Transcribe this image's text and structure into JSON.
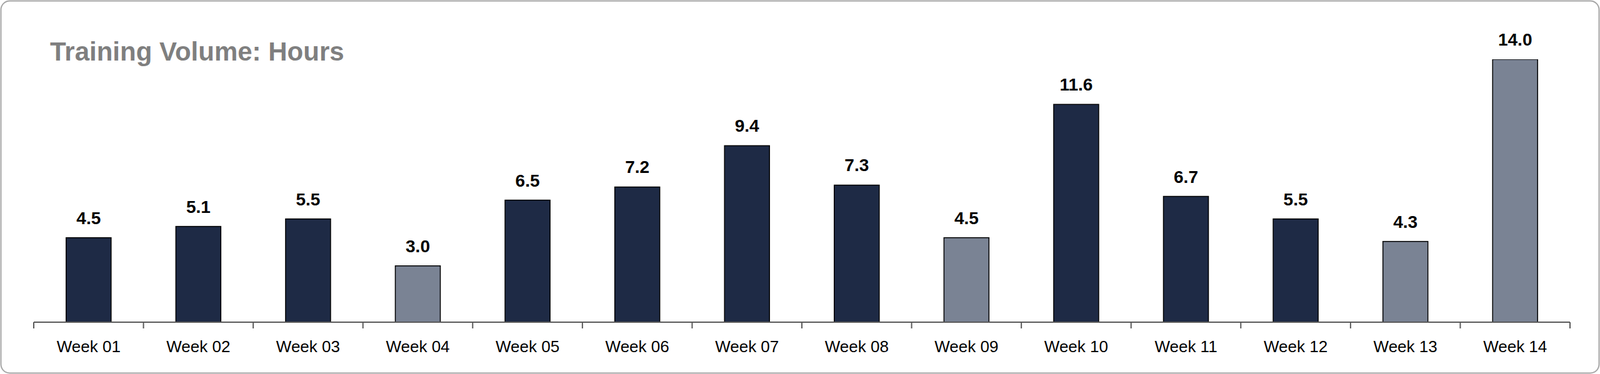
{
  "chart_data": {
    "type": "bar",
    "title": "Training Volume: Hours",
    "categories": [
      "Week 01",
      "Week 02",
      "Week 03",
      "Week 04",
      "Week 05",
      "Week 06",
      "Week 07",
      "Week 08",
      "Week 09",
      "Week 10",
      "Week 11",
      "Week 12",
      "Week 13",
      "Week 14"
    ],
    "values": [
      4.5,
      5.1,
      5.5,
      3.0,
      6.5,
      7.2,
      9.4,
      7.3,
      4.5,
      11.6,
      6.7,
      5.5,
      4.3,
      14.0
    ],
    "value_labels": [
      "4.5",
      "5.1",
      "5.5",
      "3.0",
      "6.5",
      "7.2",
      "9.4",
      "7.3",
      "4.5",
      "11.6",
      "6.7",
      "5.5",
      "4.3",
      "14.0"
    ],
    "colors": [
      "#1e2a45",
      "#1e2a45",
      "#1e2a45",
      "#7a8394",
      "#1e2a45",
      "#1e2a45",
      "#1e2a45",
      "#1e2a45",
      "#7a8394",
      "#1e2a45",
      "#1e2a45",
      "#1e2a45",
      "#7a8394",
      "#7a8394"
    ],
    "ylim": [
      0,
      14
    ],
    "data_labels": true,
    "tick_labels": "x",
    "grid": false
  }
}
